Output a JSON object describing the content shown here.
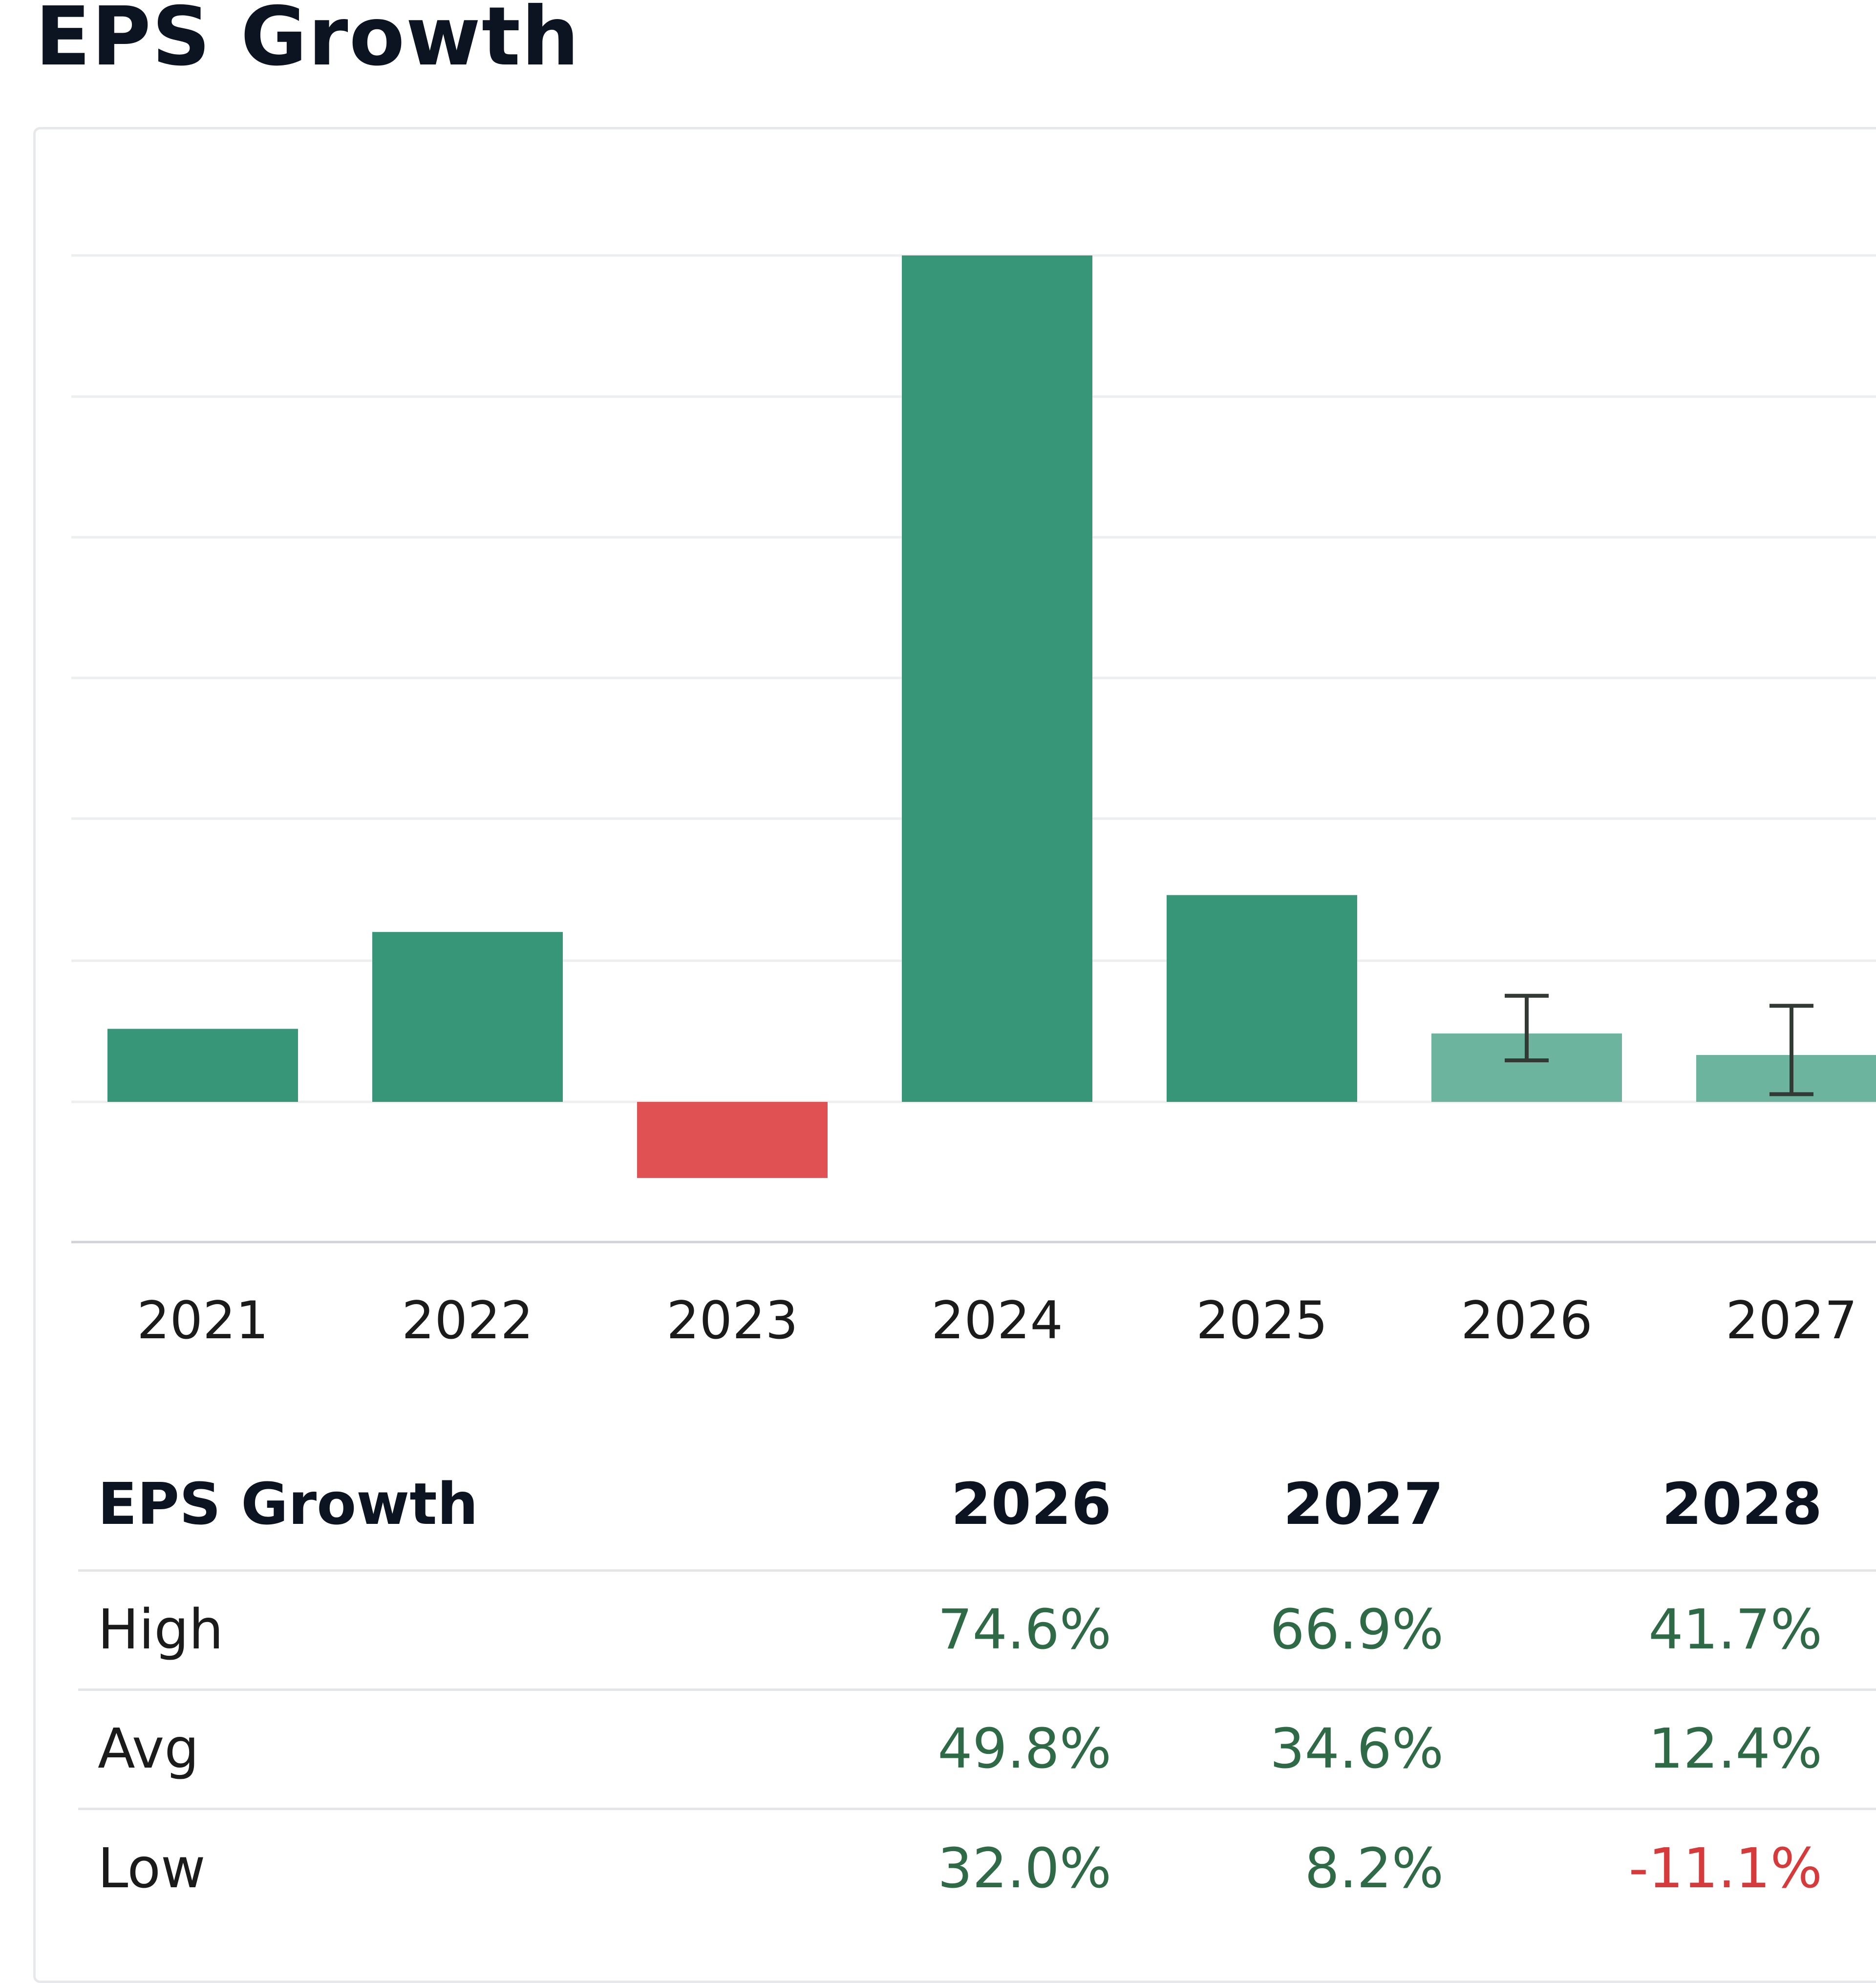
{
  "title": "EPS Growth",
  "colors": {
    "positive_bar": "#379578",
    "negative_bar": "#e05153",
    "forecast_bar": "#6db49e",
    "positive_text": "#2e6a45",
    "negative_text": "#d63a3a",
    "gridline": "#eceef0",
    "axis": "#cfd3d8"
  },
  "chart_data": {
    "type": "bar",
    "title": "EPS Growth",
    "categories": [
      "2021",
      "2022",
      "2023",
      "2024",
      "2025",
      "2026",
      "2027"
    ],
    "values": [
      9.5,
      22.1,
      -9.9,
      110.1,
      26.9,
      8.9,
      6.1
    ],
    "forecast": [
      false,
      false,
      false,
      false,
      false,
      true,
      true
    ],
    "error_bars": [
      null,
      null,
      null,
      null,
      null,
      {
        "low": 5.4,
        "high": 13.8
      },
      {
        "low": 1.0,
        "high": 12.5
      }
    ],
    "ylim": [
      -18.3,
      110.1
    ],
    "gridlines": true,
    "xlabel": "",
    "ylabel": ""
  },
  "table": {
    "header": [
      "EPS Growth",
      "2026",
      "2027",
      "2028"
    ],
    "rows": [
      {
        "label": "High",
        "values": [
          "74.6%",
          "66.9%",
          "41.7%"
        ],
        "signs": [
          "pos",
          "pos",
          "pos"
        ]
      },
      {
        "label": "Avg",
        "values": [
          "49.8%",
          "34.6%",
          "12.4%"
        ],
        "signs": [
          "pos",
          "pos",
          "pos"
        ]
      },
      {
        "label": "Low",
        "values": [
          "32.0%",
          "8.2%",
          "-11.1%"
        ],
        "signs": [
          "pos",
          "pos",
          "neg"
        ]
      }
    ]
  }
}
